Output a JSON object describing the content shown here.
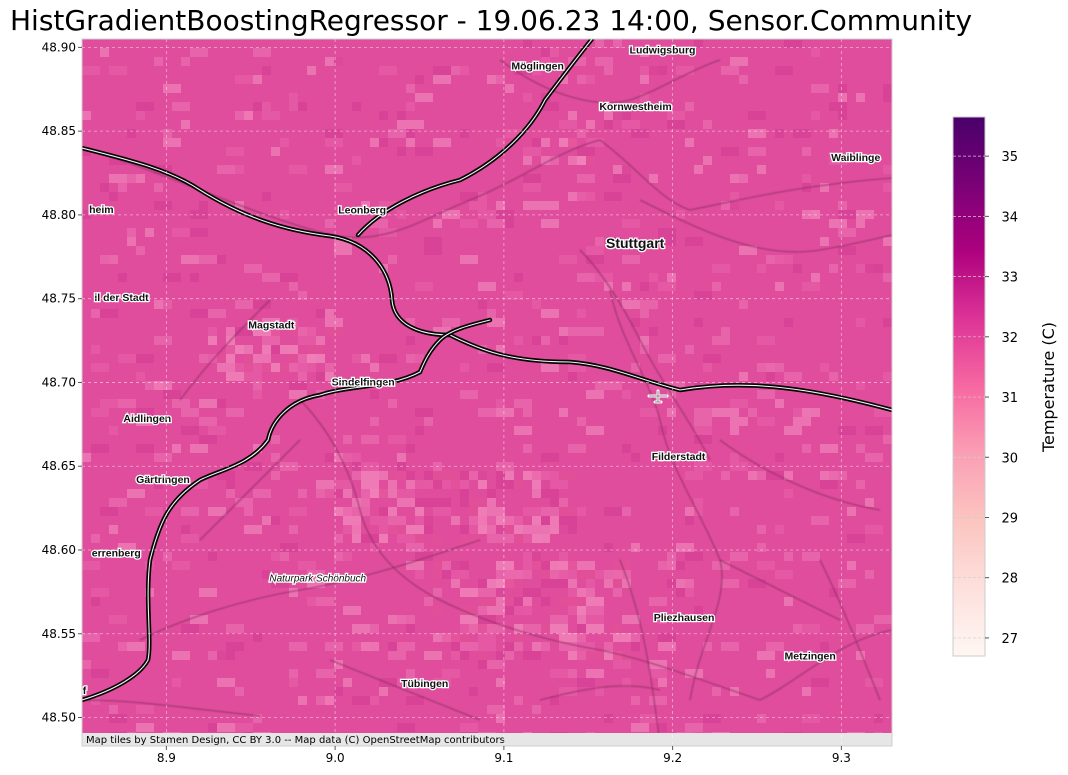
{
  "title": "HistGradientBoostingRegressor - 19.06.23 14:00, Sensor.Community",
  "attribution": "Map tiles by Stamen Design, CC BY 3.0 -- Map data (C) OpenStreetMap contributors",
  "map": {
    "lon_range": [
      8.85,
      9.33
    ],
    "lat_range": [
      48.483,
      48.905
    ],
    "x_ticks": [
      8.9,
      9.0,
      9.1,
      9.2,
      9.3
    ],
    "x_tick_labels": [
      "8.9",
      "9.0",
      "9.1",
      "9.2",
      "9.3"
    ],
    "y_ticks": [
      48.5,
      48.55,
      48.6,
      48.65,
      48.7,
      48.75,
      48.8,
      48.85,
      48.9
    ],
    "y_tick_labels": [
      "48.50",
      "48.55",
      "48.60",
      "48.65",
      "48.70",
      "48.75",
      "48.80",
      "48.85",
      "48.90"
    ],
    "grid": true,
    "base_color": "#df4d9c",
    "places": [
      {
        "name": "Ludwigsburg",
        "lon": 9.194,
        "lat": 48.898,
        "style": "normal"
      },
      {
        "name": "Möglingen",
        "lon": 9.12,
        "lat": 48.8885,
        "style": "normal"
      },
      {
        "name": "Kornwestheim",
        "lon": 9.178,
        "lat": 48.8642,
        "style": "normal"
      },
      {
        "name": "Waiblinge",
        "lon": 9.3085,
        "lat": 48.8337,
        "style": "normal"
      },
      {
        "name": "heim",
        "lon": 8.8615,
        "lat": 48.8027,
        "style": "normal"
      },
      {
        "name": "Leonberg",
        "lon": 9.016,
        "lat": 48.8025,
        "style": "normal"
      },
      {
        "name": "Stuttgart",
        "lon": 9.1778,
        "lat": 48.7825,
        "style": "major"
      },
      {
        "name": "il der Stadt",
        "lon": 8.8734,
        "lat": 48.7502,
        "style": "normal"
      },
      {
        "name": "Magstadt",
        "lon": 8.9622,
        "lat": 48.7338,
        "style": "normal"
      },
      {
        "name": "Sindelfingen",
        "lon": 9.0166,
        "lat": 48.6999,
        "style": "normal"
      },
      {
        "name": "Aidlingen",
        "lon": 8.8887,
        "lat": 48.6782,
        "style": "normal"
      },
      {
        "name": "Filderstadt",
        "lon": 9.2035,
        "lat": 48.6553,
        "style": "normal"
      },
      {
        "name": "Gärtringen",
        "lon": 8.898,
        "lat": 48.6415,
        "style": "normal"
      },
      {
        "name": "errenberg",
        "lon": 8.8703,
        "lat": 48.5978,
        "style": "normal"
      },
      {
        "name": "Naturpark Schönbuch",
        "lon": 8.9897,
        "lat": 48.5828,
        "style": "italic"
      },
      {
        "name": "Pliezhausen",
        "lon": 9.2068,
        "lat": 48.5594,
        "style": "normal"
      },
      {
        "name": "Metzingen",
        "lon": 9.2815,
        "lat": 48.5362,
        "style": "normal"
      },
      {
        "name": "Tübingen",
        "lon": 9.0531,
        "lat": 48.5198,
        "style": "normal"
      },
      {
        "name": "f",
        "lon": 8.8515,
        "lat": 48.5157,
        "style": "normal"
      }
    ],
    "airport_icon": "airplane-icon"
  },
  "colorbar": {
    "label": "Temperature (C)",
    "vmin": 26.7,
    "vmax": 35.65,
    "ticks": [
      27,
      28,
      29,
      30,
      31,
      32,
      33,
      34,
      35
    ],
    "tick_labels": [
      "27",
      "28",
      "29",
      "30",
      "31",
      "32",
      "33",
      "34",
      "35"
    ],
    "colormap_name": "RdPu",
    "colormap_stops": [
      "#fff7f3",
      "#fde0dd",
      "#fcc5c0",
      "#fa9fb5",
      "#f768a1",
      "#dd3497",
      "#ae017e",
      "#7a0177",
      "#49006a"
    ]
  }
}
